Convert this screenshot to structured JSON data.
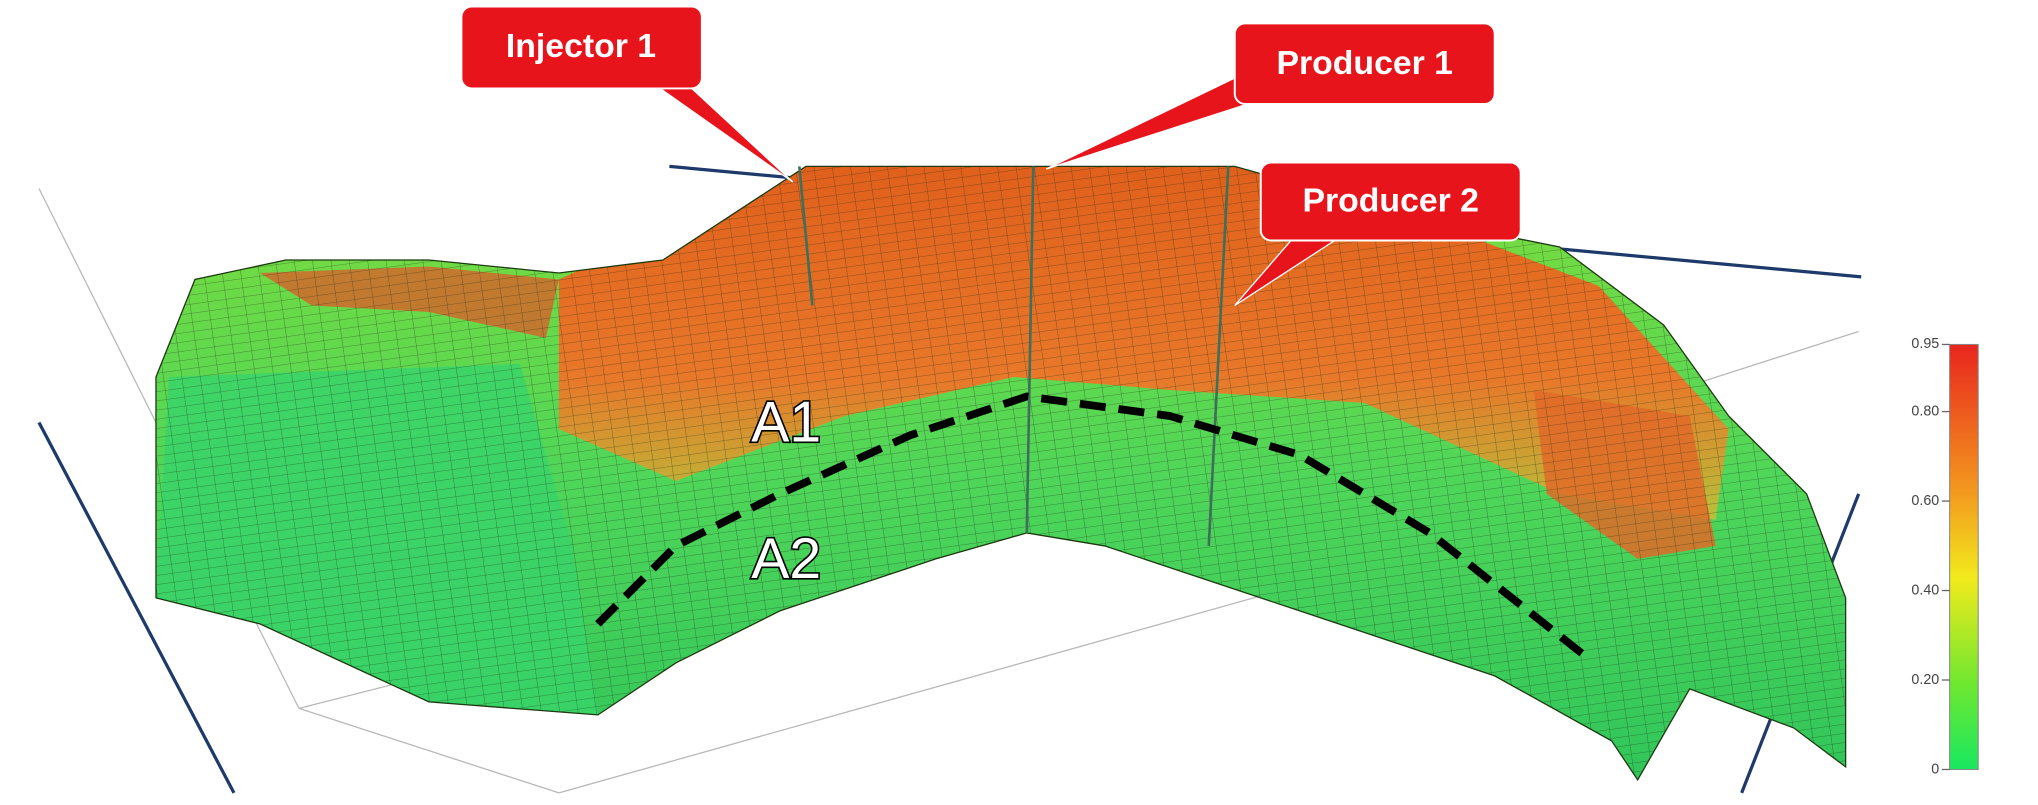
{
  "callouts": [
    {
      "label": "Injector 1"
    },
    {
      "label": "Producer 1"
    },
    {
      "label": "Producer 2"
    }
  ],
  "layers": [
    {
      "label": "A1"
    },
    {
      "label": "A2"
    }
  ],
  "colorbar": {
    "lim": [
      0,
      0.95
    ],
    "ticks": [
      0.95,
      {
        "value": 0.8,
        "label": "0.80"
      },
      {
        "value": 0.6,
        "label": "0.60"
      },
      {
        "value": 0.4,
        "label": "0.40"
      },
      {
        "value": 0.2,
        "label": "0.20"
      },
      0
    ]
  }
}
